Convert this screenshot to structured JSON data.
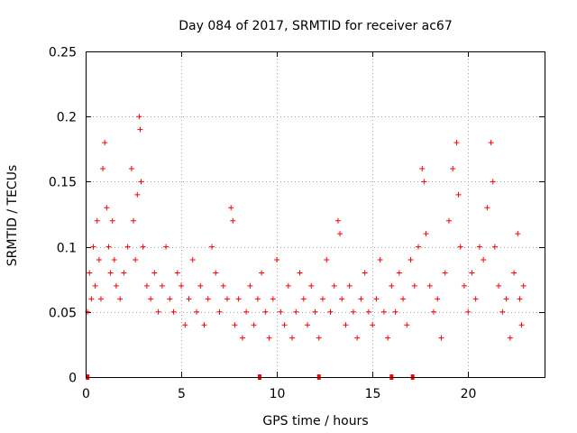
{
  "chart_data": {
    "type": "scatter",
    "title": "Day 084 of 2017, SRMTID for receiver ac67",
    "xlabel": "GPS time / hours",
    "ylabel": "SRMTID / TECUs",
    "xlim": [
      0,
      24
    ],
    "ylim": [
      0,
      0.25
    ],
    "xticks": [
      0,
      5,
      10,
      15,
      20
    ],
    "yticks": [
      0,
      0.05,
      0.1,
      0.15,
      0.2,
      0.25
    ],
    "xtick_labels": [
      "0",
      "5",
      "10",
      "15",
      "20"
    ],
    "ytick_labels": [
      "0",
      "0.05",
      "0.1",
      "0.15",
      "0.2",
      "0.25"
    ],
    "grid": true,
    "marker": "plus",
    "series": [
      {
        "name": "SRMTID",
        "color": "#ff0000",
        "points": [
          [
            0.1,
            0.05
          ],
          [
            0.2,
            0.08
          ],
          [
            0.3,
            0.06
          ],
          [
            0.4,
            0.1
          ],
          [
            0.5,
            0.07
          ],
          [
            0.6,
            0.12
          ],
          [
            0.7,
            0.09
          ],
          [
            0.8,
            0.06
          ],
          [
            0.9,
            0.16
          ],
          [
            1.0,
            0.18
          ],
          [
            1.1,
            0.13
          ],
          [
            1.2,
            0.1
          ],
          [
            1.3,
            0.08
          ],
          [
            1.4,
            0.12
          ],
          [
            1.5,
            0.09
          ],
          [
            1.6,
            0.07
          ],
          [
            1.8,
            0.06
          ],
          [
            2.0,
            0.08
          ],
          [
            2.2,
            0.1
          ],
          [
            2.4,
            0.16
          ],
          [
            2.5,
            0.12
          ],
          [
            2.6,
            0.09
          ],
          [
            2.7,
            0.14
          ],
          [
            2.8,
            0.2
          ],
          [
            2.85,
            0.19
          ],
          [
            2.9,
            0.15
          ],
          [
            3.0,
            0.1
          ],
          [
            3.2,
            0.07
          ],
          [
            3.4,
            0.06
          ],
          [
            3.6,
            0.08
          ],
          [
            3.8,
            0.05
          ],
          [
            4.0,
            0.07
          ],
          [
            4.2,
            0.1
          ],
          [
            4.4,
            0.06
          ],
          [
            4.6,
            0.05
          ],
          [
            4.8,
            0.08
          ],
          [
            5.0,
            0.07
          ],
          [
            5.2,
            0.04
          ],
          [
            5.4,
            0.06
          ],
          [
            5.6,
            0.09
          ],
          [
            5.8,
            0.05
          ],
          [
            6.0,
            0.07
          ],
          [
            6.2,
            0.04
          ],
          [
            6.4,
            0.06
          ],
          [
            6.6,
            0.1
          ],
          [
            6.8,
            0.08
          ],
          [
            7.0,
            0.05
          ],
          [
            7.2,
            0.07
          ],
          [
            7.4,
            0.06
          ],
          [
            7.6,
            0.13
          ],
          [
            7.7,
            0.12
          ],
          [
            7.8,
            0.04
          ],
          [
            8.0,
            0.06
          ],
          [
            8.2,
            0.03
          ],
          [
            8.4,
            0.05
          ],
          [
            8.6,
            0.07
          ],
          [
            8.8,
            0.04
          ],
          [
            9.0,
            0.06
          ],
          [
            9.2,
            0.08
          ],
          [
            9.4,
            0.05
          ],
          [
            9.6,
            0.03
          ],
          [
            9.8,
            0.06
          ],
          [
            10.0,
            0.09
          ],
          [
            10.2,
            0.05
          ],
          [
            10.4,
            0.04
          ],
          [
            10.6,
            0.07
          ],
          [
            10.8,
            0.03
          ],
          [
            11.0,
            0.05
          ],
          [
            11.2,
            0.08
          ],
          [
            11.4,
            0.06
          ],
          [
            11.6,
            0.04
          ],
          [
            11.8,
            0.07
          ],
          [
            12.0,
            0.05
          ],
          [
            12.2,
            0.03
          ],
          [
            12.4,
            0.06
          ],
          [
            12.6,
            0.09
          ],
          [
            12.8,
            0.05
          ],
          [
            13.0,
            0.07
          ],
          [
            13.2,
            0.12
          ],
          [
            13.3,
            0.11
          ],
          [
            13.4,
            0.06
          ],
          [
            13.6,
            0.04
          ],
          [
            13.8,
            0.07
          ],
          [
            14.0,
            0.05
          ],
          [
            14.2,
            0.03
          ],
          [
            14.4,
            0.06
          ],
          [
            14.6,
            0.08
          ],
          [
            14.8,
            0.05
          ],
          [
            15.0,
            0.04
          ],
          [
            15.2,
            0.06
          ],
          [
            15.4,
            0.09
          ],
          [
            15.6,
            0.05
          ],
          [
            15.8,
            0.03
          ],
          [
            16.0,
            0.07
          ],
          [
            16.2,
            0.05
          ],
          [
            16.4,
            0.08
          ],
          [
            16.6,
            0.06
          ],
          [
            16.8,
            0.04
          ],
          [
            17.0,
            0.09
          ],
          [
            17.2,
            0.07
          ],
          [
            17.4,
            0.1
          ],
          [
            17.6,
            0.16
          ],
          [
            17.7,
            0.15
          ],
          [
            17.8,
            0.11
          ],
          [
            18.0,
            0.07
          ],
          [
            18.2,
            0.05
          ],
          [
            18.4,
            0.06
          ],
          [
            18.6,
            0.03
          ],
          [
            18.8,
            0.08
          ],
          [
            19.0,
            0.12
          ],
          [
            19.2,
            0.16
          ],
          [
            19.4,
            0.18
          ],
          [
            19.5,
            0.14
          ],
          [
            19.6,
            0.1
          ],
          [
            19.8,
            0.07
          ],
          [
            20.0,
            0.05
          ],
          [
            20.2,
            0.08
          ],
          [
            20.4,
            0.06
          ],
          [
            20.6,
            0.1
          ],
          [
            20.8,
            0.09
          ],
          [
            21.0,
            0.13
          ],
          [
            21.2,
            0.18
          ],
          [
            21.3,
            0.15
          ],
          [
            21.4,
            0.1
          ],
          [
            21.6,
            0.07
          ],
          [
            21.8,
            0.05
          ],
          [
            22.0,
            0.06
          ],
          [
            22.2,
            0.03
          ],
          [
            22.4,
            0.08
          ],
          [
            22.6,
            0.11
          ],
          [
            22.7,
            0.06
          ],
          [
            22.8,
            0.04
          ],
          [
            22.9,
            0.07
          ]
        ]
      }
    ],
    "zero_markers": [
      0.1,
      9.1,
      12.2,
      16.0,
      17.1
    ]
  }
}
